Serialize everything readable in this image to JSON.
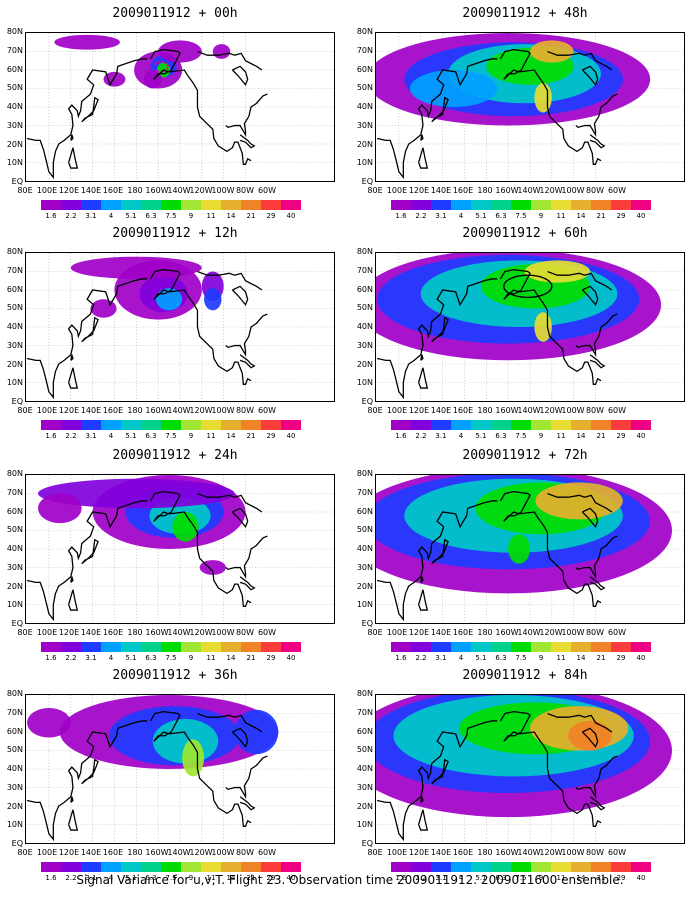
{
  "panels": [
    {
      "title": "2009011912 + 00h",
      "stage": 0
    },
    {
      "title": "2009011912 + 48h",
      "stage": 4
    },
    {
      "title": "2009011912 + 12h",
      "stage": 1
    },
    {
      "title": "2009011912 + 60h",
      "stage": 5
    },
    {
      "title": "2009011912 + 24h",
      "stage": 2
    },
    {
      "title": "2009011912 + 72h",
      "stage": 6
    },
    {
      "title": "2009011912 + 36h",
      "stage": 3
    },
    {
      "title": "2009011912 + 84h",
      "stage": 7
    }
  ],
  "lat_labels": [
    "80N",
    "70N",
    "60N",
    "50N",
    "40N",
    "30N",
    "20N",
    "10N",
    "EQ"
  ],
  "lon_labels": [
    "80E",
    "100E",
    "120E",
    "140E",
    "160E",
    "180",
    "160W",
    "140W",
    "120W",
    "100W",
    "80W",
    "60W"
  ],
  "colorbar": {
    "labels": [
      "1.6",
      "2.2",
      "3.1",
      "4",
      "5.1",
      "6.3",
      "7.5",
      "9",
      "11",
      "14",
      "21",
      "29",
      "40"
    ],
    "colors": [
      "#a000c8",
      "#8200dc",
      "#1e3cff",
      "#00a0ff",
      "#00c8c8",
      "#00d28c",
      "#00dc00",
      "#a0e632",
      "#e6dc32",
      "#e6af2d",
      "#f08228",
      "#fa3c3c",
      "#f00082"
    ]
  },
  "caption": "Signal Variance for u,v,T. Flight 23. Observation time 2009011912. 2009011600 ensemble."
}
